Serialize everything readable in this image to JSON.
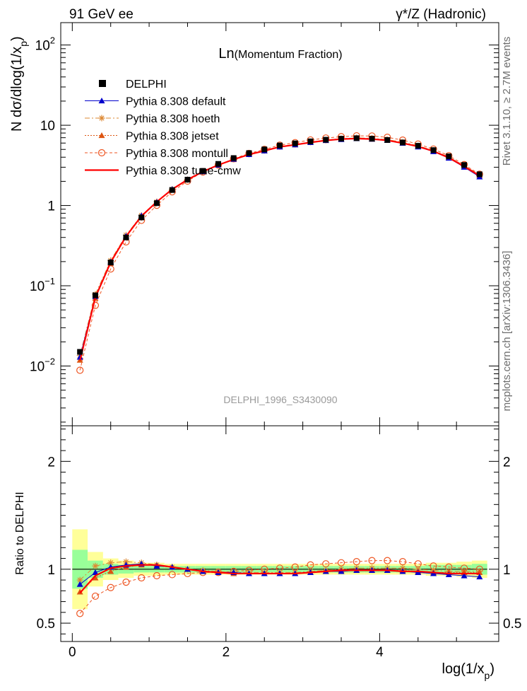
{
  "header": {
    "left_title": "91 GeV ee",
    "right_title": "γ*/Z (Hadronic)"
  },
  "side_labels": {
    "rivet": "Rivet 3.1.10, ≥ 2.7M events",
    "mcplots": "mcplots.cern.ch [arXiv:1306.3436]"
  },
  "chart_data": {
    "type": "line",
    "title": "Ln(Momentum Fraction)",
    "title_main": "Ln",
    "title_sub": "(Momentum Fraction)",
    "analysis_label": "DELPHI_1996_S3430090",
    "ylabel_main": "N dσ/dlog(1/x",
    "ylabel_sub": "p",
    "ylabel_close": ")",
    "xlabel_main": "log(1/x",
    "xlabel_sub": "p",
    "xlabel_close": ")",
    "ratio_ylabel": "Ratio to DELPHI",
    "xlim": [
      -0.15,
      5.55
    ],
    "ylim": [
      0.0018,
      190
    ],
    "yscale": "log",
    "ratio_ylim": [
      0.33,
      2.33
    ],
    "x_ticks": [
      0,
      2,
      4
    ],
    "x_tick_labels": [
      "0",
      "2",
      "4"
    ],
    "y_ticks": [
      0.01,
      0.1,
      1,
      10,
      100
    ],
    "y_tick_labels_main": [
      "10",
      "10",
      "1",
      "10",
      "10"
    ],
    "y_tick_labels_exp": [
      "−2",
      "−1",
      "",
      "",
      "2"
    ],
    "ratio_ticks": [
      0.5,
      1,
      2
    ],
    "ratio_tick_labels": [
      "0.5",
      "1",
      "2"
    ],
    "x": [
      0.1,
      0.3,
      0.5,
      0.7,
      0.9,
      1.1,
      1.3,
      1.5,
      1.7,
      1.9,
      2.1,
      2.3,
      2.5,
      2.7,
      2.9,
      3.1,
      3.3,
      3.5,
      3.7,
      3.9,
      4.1,
      4.3,
      4.5,
      4.7,
      4.9,
      5.1,
      5.3
    ],
    "data": {
      "name": "DELPHI",
      "values": [
        0.015,
        0.076,
        0.195,
        0.4,
        0.71,
        1.07,
        1.56,
        2.1,
        2.7,
        3.3,
        3.9,
        4.5,
        5.0,
        5.6,
        5.95,
        6.3,
        6.6,
        6.8,
        6.9,
        6.8,
        6.55,
        6.1,
        5.55,
        4.9,
        4.1,
        3.2,
        2.45
      ],
      "err_stat": [
        0.18,
        0.08,
        0.05,
        0.04,
        0.03,
        0.03,
        0.03,
        0.03,
        0.03,
        0.03,
        0.03,
        0.03,
        0.03,
        0.03,
        0.03,
        0.03,
        0.03,
        0.03,
        0.03,
        0.03,
        0.03,
        0.03,
        0.03,
        0.04,
        0.04,
        0.04,
        0.05
      ],
      "err_tot": [
        0.37,
        0.16,
        0.1,
        0.08,
        0.06,
        0.06,
        0.05,
        0.05,
        0.05,
        0.05,
        0.05,
        0.05,
        0.05,
        0.05,
        0.05,
        0.05,
        0.05,
        0.05,
        0.05,
        0.05,
        0.05,
        0.05,
        0.05,
        0.06,
        0.06,
        0.07,
        0.08
      ]
    },
    "series": [
      {
        "name": "Pythia 8.308 default",
        "color": "#0000cc",
        "marker": "triangle",
        "dash": "",
        "ratio": [
          0.86,
          0.97,
          1.02,
          1.04,
          1.05,
          1.03,
          1.02,
          1.0,
          0.98,
          0.97,
          0.97,
          0.96,
          0.96,
          0.96,
          0.96,
          0.97,
          0.98,
          0.98,
          0.99,
          0.99,
          0.99,
          0.98,
          0.97,
          0.96,
          0.95,
          0.94,
          0.93
        ]
      },
      {
        "name": "Pythia 8.308 hoeth",
        "color": "#dd8833",
        "marker": "star",
        "dash": "7,3,2,3",
        "ratio": [
          0.9,
          1.03,
          1.06,
          1.07,
          1.06,
          1.04,
          1.02,
          1.0,
          0.99,
          0.98,
          0.97,
          0.97,
          0.97,
          0.97,
          0.97,
          0.98,
          0.99,
          1.0,
          1.01,
          1.01,
          1.01,
          1.01,
          1.0,
          0.99,
          0.98,
          0.98,
          0.98
        ]
      },
      {
        "name": "Pythia 8.308 jetset",
        "color": "#dd5511",
        "marker": "triangle",
        "dash": "2,2",
        "ratio": [
          0.79,
          0.92,
          0.98,
          1.02,
          1.04,
          1.04,
          1.02,
          1.0,
          0.98,
          0.97,
          0.96,
          0.96,
          0.96,
          0.96,
          0.96,
          0.97,
          0.98,
          0.99,
          0.99,
          0.99,
          0.99,
          0.99,
          0.98,
          0.97,
          0.97,
          0.97,
          0.97
        ]
      },
      {
        "name": "Pythia 8.308 montull",
        "color": "#ee5522",
        "marker": "circle",
        "dash": "4,3",
        "ratio": [
          0.59,
          0.75,
          0.83,
          0.88,
          0.92,
          0.94,
          0.95,
          0.96,
          0.97,
          0.97,
          0.98,
          0.99,
          1.0,
          1.01,
          1.02,
          1.04,
          1.05,
          1.06,
          1.07,
          1.08,
          1.08,
          1.07,
          1.05,
          1.03,
          1.02,
          1.01,
          1.0
        ]
      },
      {
        "name": "Pythia 8.308 tune-cmw",
        "color": "#ff0000",
        "marker": "none",
        "dash": "",
        "ratio": [
          0.78,
          0.94,
          1.01,
          1.03,
          1.04,
          1.04,
          1.02,
          1.0,
          0.98,
          0.97,
          0.96,
          0.96,
          0.96,
          0.96,
          0.96,
          0.97,
          0.98,
          0.99,
          0.99,
          0.99,
          0.99,
          0.98,
          0.98,
          0.97,
          0.96,
          0.96,
          0.96
        ]
      }
    ]
  }
}
